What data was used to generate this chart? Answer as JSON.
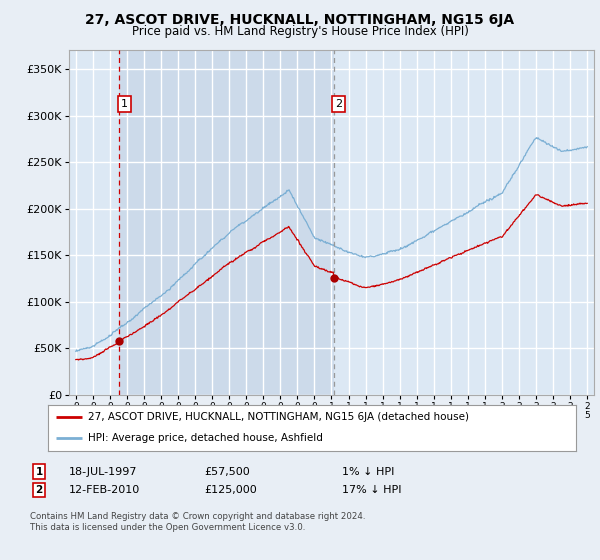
{
  "title": "27, ASCOT DRIVE, HUCKNALL, NOTTINGHAM, NG15 6JA",
  "subtitle": "Price paid vs. HM Land Registry's House Price Index (HPI)",
  "bg_color": "#e8eef5",
  "plot_bg_color": "#dce8f4",
  "plot_bg_shaded": "#ccdaea",
  "grid_color": "#ffffff",
  "sale1_date": 1997.54,
  "sale1_price": 57500,
  "sale1_label": "1",
  "sale2_date": 2010.12,
  "sale2_price": 125000,
  "sale2_label": "2",
  "hpi_line_color": "#7bafd4",
  "price_line_color": "#cc0000",
  "point_color": "#aa0000",
  "dashed1_color": "#cc0000",
  "dashed2_color": "#999999",
  "ytick_vals": [
    0,
    50000,
    100000,
    150000,
    200000,
    250000,
    300000,
    350000
  ],
  "ylabel_ticks": [
    "£0",
    "£50K",
    "£100K",
    "£150K",
    "£200K",
    "£250K",
    "£300K",
    "£350K"
  ],
  "xmin": 1994.6,
  "xmax": 2025.4,
  "ymin": 0,
  "ymax": 370000,
  "legend_line1": "27, ASCOT DRIVE, HUCKNALL, NOTTINGHAM, NG15 6JA (detached house)",
  "legend_line2": "HPI: Average price, detached house, Ashfield",
  "footnote": "Contains HM Land Registry data © Crown copyright and database right 2024.\nThis data is licensed under the Open Government Licence v3.0.",
  "table_row1": [
    "1",
    "18-JUL-1997",
    "£57,500",
    "1% ↓ HPI"
  ],
  "table_row2": [
    "2",
    "12-FEB-2010",
    "£125,000",
    "17% ↓ HPI"
  ]
}
